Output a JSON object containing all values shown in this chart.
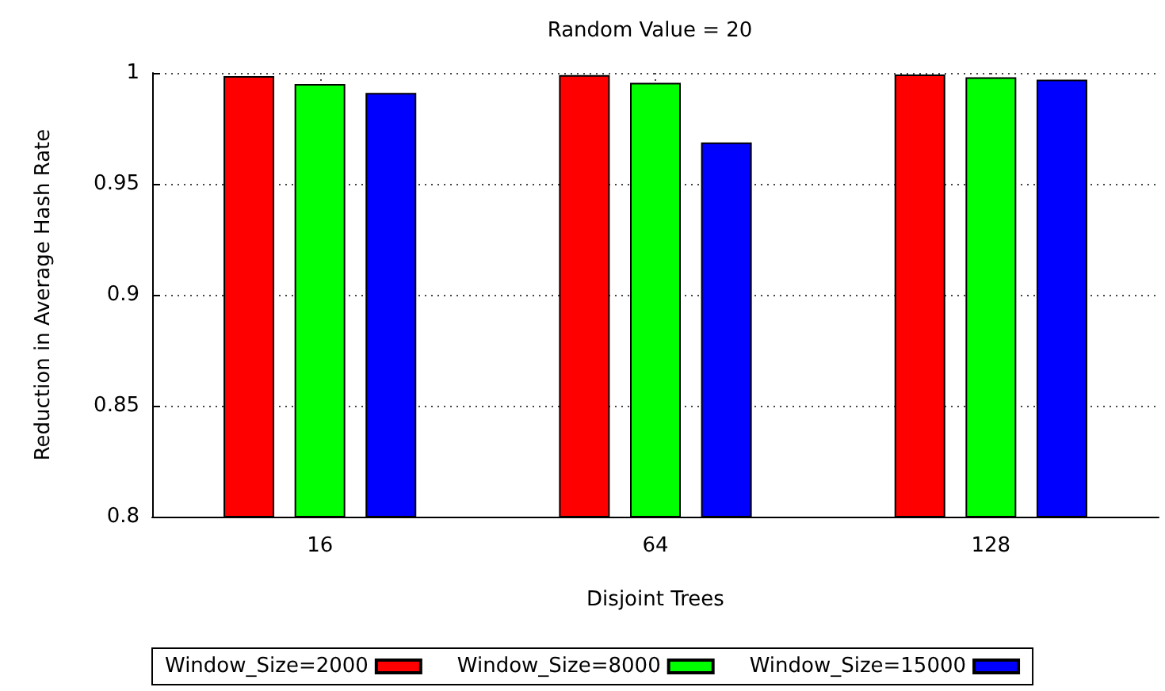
{
  "chart_data": {
    "type": "bar",
    "title": "Random Value = 20",
    "xlabel": "Disjoint Trees",
    "ylabel": "Reduction in Average Hash Rate",
    "categories": [
      "16",
      "64",
      "128"
    ],
    "series": [
      {
        "name": "Window_Size=2000",
        "color": "#ff0000",
        "values": [
          0.9986,
          0.999,
          0.9993
        ]
      },
      {
        "name": "Window_Size=8000",
        "color": "#00ff00",
        "values": [
          0.995,
          0.9955,
          0.998
        ]
      },
      {
        "name": "Window_Size=15000",
        "color": "#0000ff",
        "values": [
          0.991,
          0.9687,
          0.997
        ]
      }
    ],
    "ylim": [
      0.8,
      1
    ],
    "yticks": [
      0.8,
      0.85,
      0.9,
      0.95,
      1
    ],
    "grid": true,
    "legend": "bottom"
  }
}
